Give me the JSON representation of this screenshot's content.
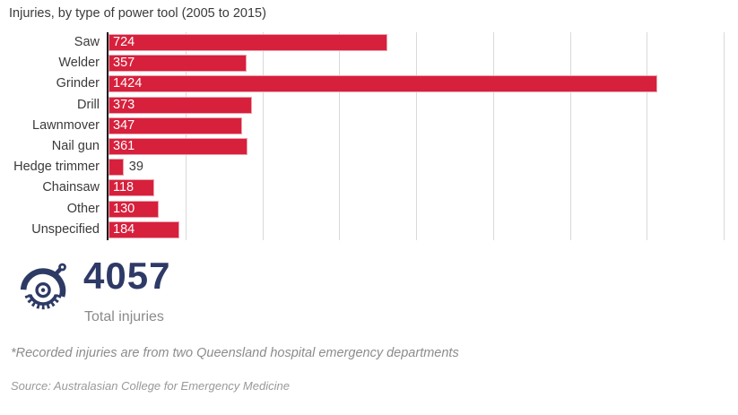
{
  "title": "Injuries, by type of power tool (2005 to 2015)",
  "chart_data": {
    "type": "bar",
    "orientation": "horizontal",
    "title": "Injuries, by type of power tool (2005 to 2015)",
    "categories": [
      "Saw",
      "Welder",
      "Grinder",
      "Drill",
      "Lawnmover",
      "Nail gun",
      "Hedge trimmer",
      "Chainsaw",
      "Other",
      "Unspecified"
    ],
    "values": [
      724,
      357,
      1424,
      373,
      347,
      361,
      39,
      118,
      130,
      184
    ],
    "xlabel": "",
    "ylabel": "",
    "xlim": [
      0,
      1600
    ],
    "gridline_interval": 200,
    "grid": true,
    "legend": "none",
    "bar_color": "#d6203c",
    "bar_border_color": "#eda2ae",
    "axis_line_color": "#161616",
    "gridline_color": "#d9d9d9",
    "value_label_inside_color": "#ffffff",
    "value_label_outside_color": "#3a3a3a"
  },
  "total": {
    "value": "4057",
    "label": "Total injuries",
    "icon": "circular-saw-icon",
    "number_color": "#2e3a66"
  },
  "footnote": "*Recorded injuries are from two Queensland hospital emergency departments",
  "source": "Source: Australasian College for Emergency Medicine",
  "colors": {
    "background": "#ffffff",
    "title_text": "#3a3a3a",
    "category_label_text": "#3a3a3a",
    "muted_text": "#8a8a8a",
    "icon_navy": "#2e3a66"
  }
}
